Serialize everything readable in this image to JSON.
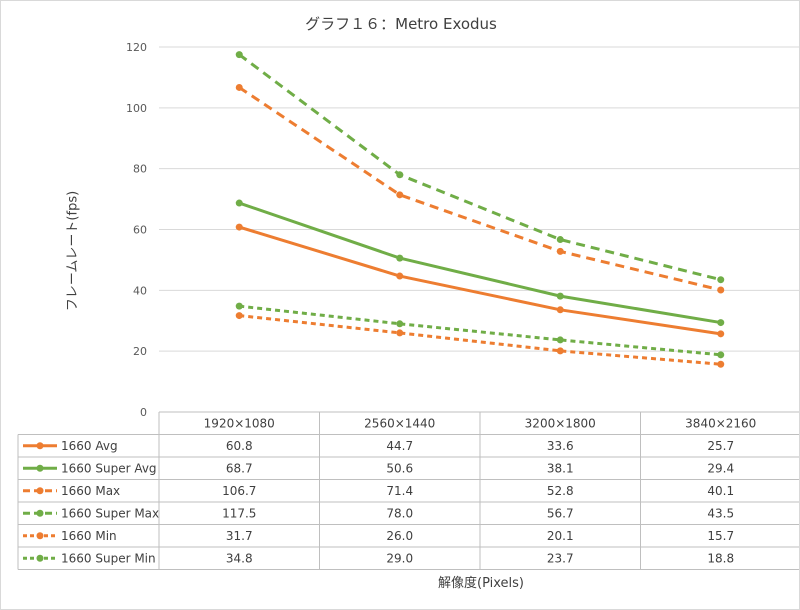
{
  "chart_data": {
    "type": "line",
    "title": "グラフ１６：Metro Exodus",
    "ylabel": "フレームレート(fps)",
    "xlabel": "解像度(Pixels)",
    "ylim": [
      0,
      120
    ],
    "yticks": [
      0,
      20,
      40,
      60,
      80,
      100,
      120
    ],
    "categories": [
      "1920×1080",
      "2560×1440",
      "3200×1800",
      "3840×2160"
    ],
    "grid": true,
    "legend": "data-table",
    "series": [
      {
        "name": "1660 Avg",
        "values": [
          60.8,
          44.7,
          33.6,
          25.7
        ],
        "color": "#ED7D31",
        "dash": "solid"
      },
      {
        "name": "1660 Super Avg",
        "values": [
          68.7,
          50.6,
          38.1,
          29.4
        ],
        "color": "#70AD47",
        "dash": "solid"
      },
      {
        "name": "1660 Max",
        "values": [
          106.7,
          71.4,
          52.8,
          40.1
        ],
        "color": "#ED7D31",
        "dash": "dash"
      },
      {
        "name": "1660 Super Max",
        "values": [
          117.5,
          78.0,
          56.7,
          43.5
        ],
        "color": "#70AD47",
        "dash": "dash"
      },
      {
        "name": "1660 Min",
        "values": [
          31.7,
          26.0,
          20.1,
          15.7
        ],
        "color": "#ED7D31",
        "dash": "dot"
      },
      {
        "name": "1660 Super Min",
        "values": [
          34.8,
          29.0,
          23.7,
          18.8
        ],
        "color": "#70AD47",
        "dash": "dot"
      }
    ],
    "table_values": [
      [
        "60.8",
        "44.7",
        "33.6",
        "25.7"
      ],
      [
        "68.7",
        "50.6",
        "38.1",
        "29.4"
      ],
      [
        "106.7",
        "71.4",
        "52.8",
        "40.1"
      ],
      [
        "117.5",
        "78.0",
        "56.7",
        "43.5"
      ],
      [
        "31.7",
        "26.0",
        "20.1",
        "15.7"
      ],
      [
        "34.8",
        "29.0",
        "23.7",
        "18.8"
      ]
    ]
  }
}
